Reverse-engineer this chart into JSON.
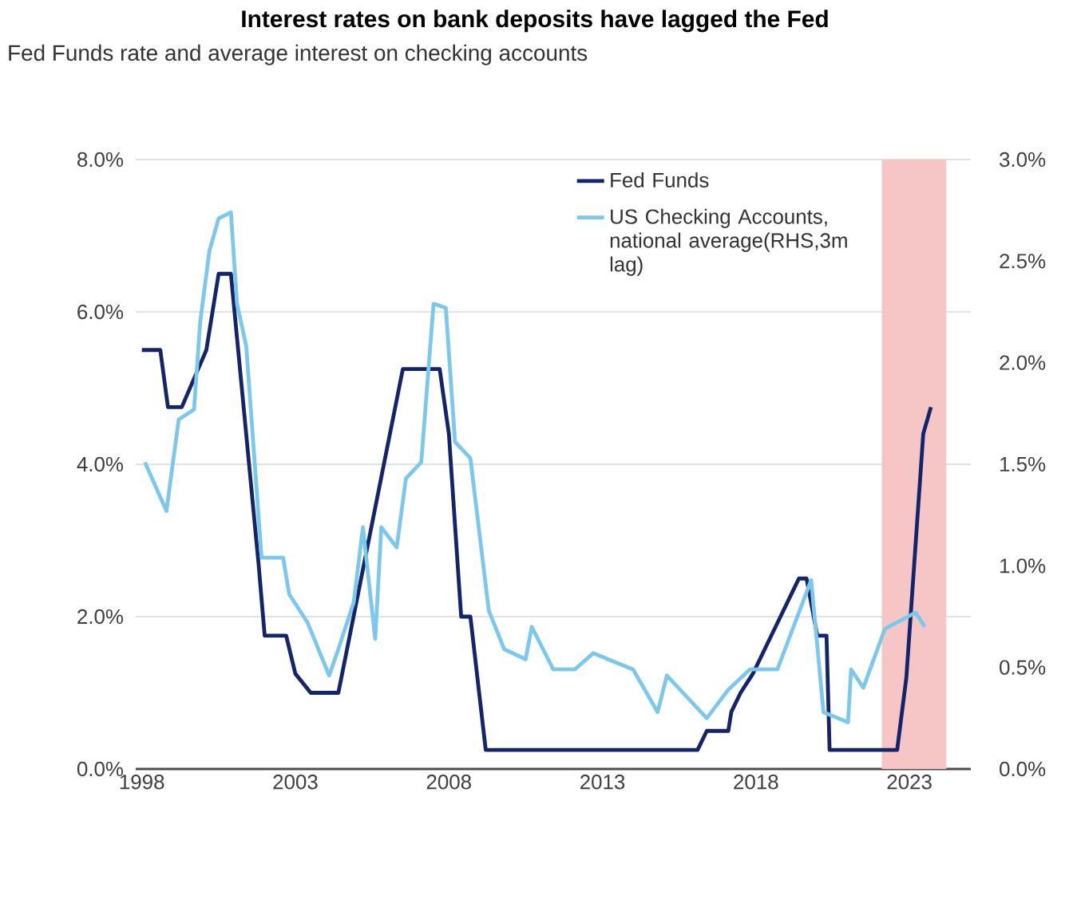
{
  "chart_data": {
    "type": "line",
    "title": "Interest rates on bank deposits have lagged the Fed",
    "subtitle": "Fed Funds rate and average interest on checking accounts",
    "xlim": [
      1997.8,
      2025
    ],
    "xticks": [
      1998,
      2003,
      2008,
      2013,
      2018,
      2023
    ],
    "ylim": [
      0,
      8
    ],
    "yticks": [
      {
        "value": 0,
        "label": "0.0%"
      },
      {
        "value": 2,
        "label": "2.0%"
      },
      {
        "value": 4,
        "label": "4.0%"
      },
      {
        "value": 6,
        "label": "6.0%"
      },
      {
        "value": 8,
        "label": "8.0%"
      }
    ],
    "y2lim": [
      0,
      3
    ],
    "y2ticks": [
      {
        "value": 0,
        "label": "0.0%"
      },
      {
        "value": 0.5,
        "label": "0.5%"
      },
      {
        "value": 1,
        "label": "1.0%"
      },
      {
        "value": 1.5,
        "label": "1.5%"
      },
      {
        "value": 2,
        "label": "2.0%"
      },
      {
        "value": 2.5,
        "label": "2.5%"
      },
      {
        "value": 3,
        "label": "3.0%"
      }
    ],
    "grid": "y",
    "legend": "top right",
    "bands": [
      {
        "axis": "x",
        "from": 2022.1,
        "to": 2024.2,
        "color": "#f6c6c6"
      }
    ],
    "series": [
      {
        "name": "Fed Funds",
        "color": "#14246b",
        "x": [
          1998,
          1998.6,
          1998.85,
          1999.3,
          2000.1,
          2000.5,
          2000.9,
          2001.8,
          2002.0,
          2002.7,
          2003.0,
          2003.5,
          2004.4,
          2006.5,
          2007.7,
          2008.0,
          2008.4,
          2008.7,
          2009.2,
          2016.1,
          2016.4,
          2017.1,
          2017.2,
          2017.5,
          2017.9,
          2018.2,
          2018.5,
          2018.8,
          2019.1,
          2019.4,
          2019.65,
          2020.0,
          2020.3,
          2020.4,
          2022.6,
          2022.9,
          2023.45,
          2023.7
        ],
        "values": [
          5.5,
          5.5,
          4.75,
          4.75,
          5.5,
          6.5,
          6.5,
          2.7,
          1.75,
          1.75,
          1.25,
          1.0,
          1.0,
          5.25,
          5.25,
          4.4,
          2.0,
          2.0,
          0.25,
          0.25,
          0.5,
          0.5,
          0.75,
          1.0,
          1.25,
          1.5,
          1.75,
          2.0,
          2.25,
          2.5,
          2.5,
          1.75,
          1.75,
          0.25,
          0.25,
          1.2,
          4.4,
          4.75
        ]
      },
      {
        "name": "US Checking Accounts, national average(RHS,3m lag)",
        "color": "#7cc8ec",
        "axis": "y2",
        "x": [
          1998.1,
          1998.8,
          1999.2,
          1999.7,
          1999.9,
          2000.2,
          2000.5,
          2000.9,
          2001.1,
          2001.4,
          2001.9,
          2002.6,
          2002.8,
          2003.4,
          2004.1,
          2004.4,
          2004.9,
          2005.2,
          2005.6,
          2005.8,
          2006.3,
          2006.6,
          2007.1,
          2007.5,
          2007.9,
          2008.2,
          2008.7,
          2009.3,
          2009.8,
          2010.5,
          2010.7,
          2011.4,
          2012.1,
          2012.7,
          2014.0,
          2014.8,
          2015.1,
          2016.4,
          2017.1,
          2017.8,
          2018.7,
          2019.8,
          2020.2,
          2021.0,
          2021.1,
          2021.5,
          2022.2,
          2023.2,
          2023.5
        ],
        "values": [
          1.51,
          1.27,
          1.72,
          1.77,
          2.2,
          2.55,
          2.71,
          2.74,
          2.29,
          2.08,
          1.04,
          1.04,
          0.86,
          0.72,
          0.46,
          0.59,
          0.82,
          1.19,
          0.64,
          1.19,
          1.09,
          1.43,
          1.51,
          2.29,
          2.27,
          1.61,
          1.53,
          0.78,
          0.59,
          0.54,
          0.7,
          0.49,
          0.49,
          0.57,
          0.49,
          0.28,
          0.46,
          0.25,
          0.39,
          0.49,
          0.49,
          0.93,
          0.28,
          0.23,
          0.49,
          0.4,
          0.69,
          0.77,
          0.7
        ]
      }
    ]
  }
}
